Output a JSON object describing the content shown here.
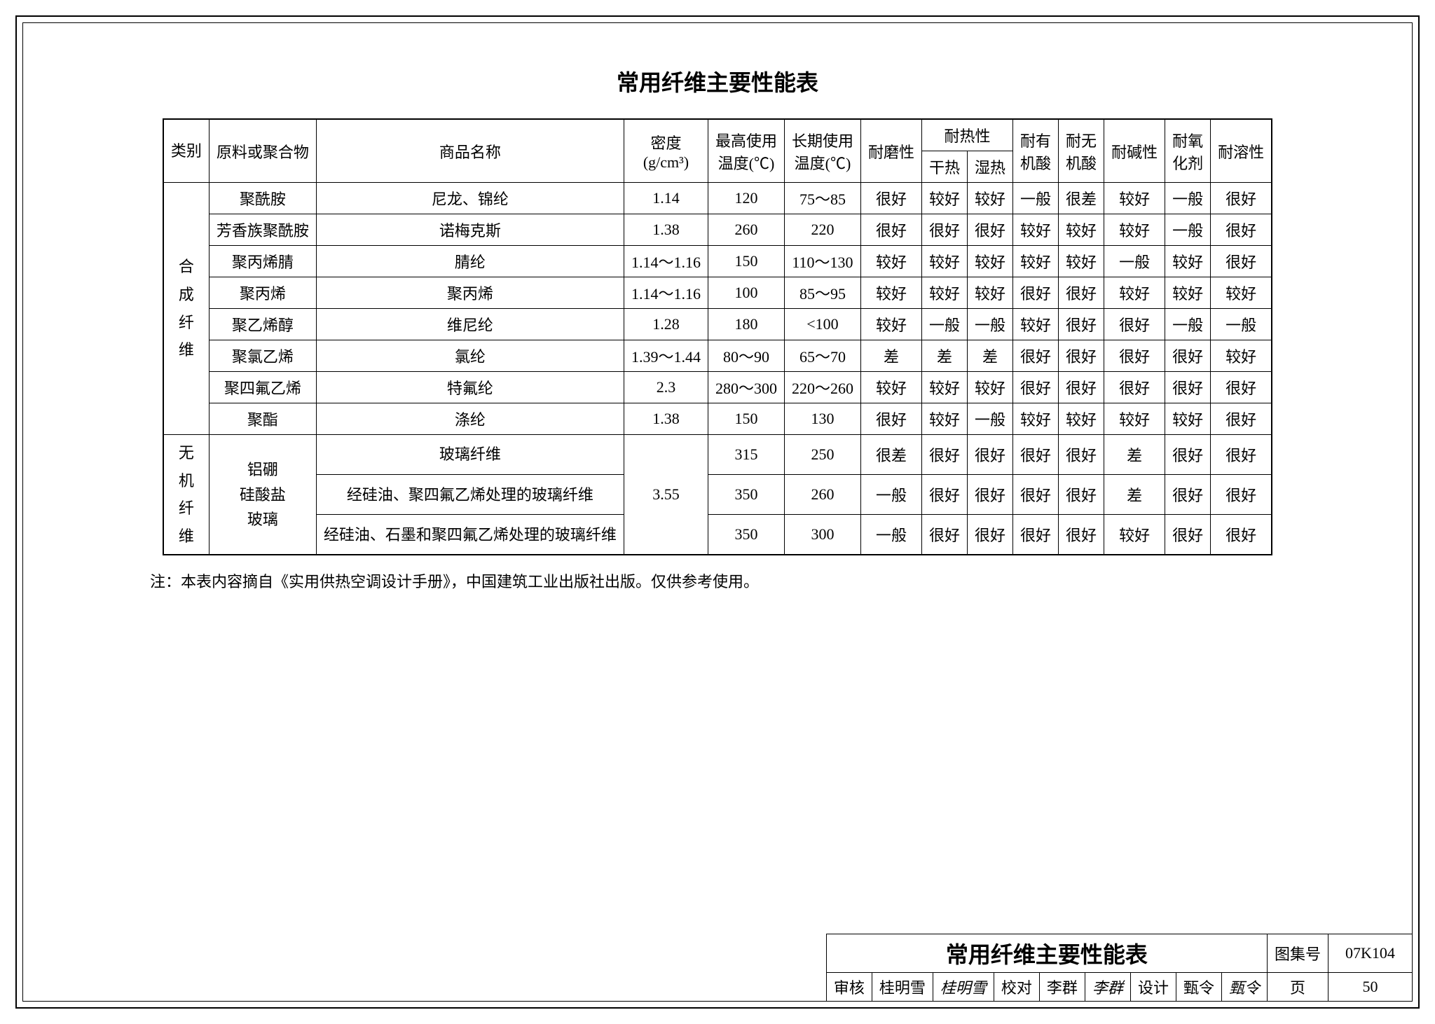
{
  "title": "常用纤维主要性能表",
  "columns": {
    "category": "类别",
    "material": "原料或聚合物",
    "name": "商品名称",
    "density": "密度",
    "density_unit": "(g/cm³)",
    "max_temp": "最高使用温度(℃)",
    "long_temp": "长期使用温度(℃)",
    "abrasion": "耐磨性",
    "heat": "耐热性",
    "heat_dry": "干热",
    "heat_wet": "湿热",
    "org_acid": "耐有机酸",
    "inorg_acid": "耐无机酸",
    "alkali": "耐碱性",
    "oxidizer": "耐氧化剂",
    "solvent": "耐溶性"
  },
  "cat1": "合成纤维",
  "cat2": "无机纤维",
  "cat2_material": "铝硼\n硅酸盐\n玻璃",
  "rows_synthetic": [
    {
      "material": "聚酰胺",
      "name": "尼龙、锦纶",
      "density": "1.14",
      "max": "120",
      "long": "75～85",
      "abr": "很好",
      "hd": "较好",
      "hw": "较好",
      "oa": "一般",
      "ia": "很差",
      "alk": "较好",
      "ox": "一般",
      "sol": "很好"
    },
    {
      "material": "芳香族聚酰胺",
      "name": "诺梅克斯",
      "density": "1.38",
      "max": "260",
      "long": "220",
      "abr": "很好",
      "hd": "很好",
      "hw": "很好",
      "oa": "较好",
      "ia": "较好",
      "alk": "较好",
      "ox": "一般",
      "sol": "很好"
    },
    {
      "material": "聚丙烯腈",
      "name": "腈纶",
      "density": "1.14～1.16",
      "max": "150",
      "long": "110～130",
      "abr": "较好",
      "hd": "较好",
      "hw": "较好",
      "oa": "较好",
      "ia": "较好",
      "alk": "一般",
      "ox": "较好",
      "sol": "很好"
    },
    {
      "material": "聚丙烯",
      "name": "聚丙烯",
      "density": "1.14～1.16",
      "max": "100",
      "long": "85～95",
      "abr": "较好",
      "hd": "较好",
      "hw": "较好",
      "oa": "很好",
      "ia": "很好",
      "alk": "较好",
      "ox": "较好",
      "sol": "较好"
    },
    {
      "material": "聚乙烯醇",
      "name": "维尼纶",
      "density": "1.28",
      "max": "180",
      "long": "<100",
      "abr": "较好",
      "hd": "一般",
      "hw": "一般",
      "oa": "较好",
      "ia": "很好",
      "alk": "很好",
      "ox": "一般",
      "sol": "一般"
    },
    {
      "material": "聚氯乙烯",
      "name": "氯纶",
      "density": "1.39～1.44",
      "max": "80～90",
      "long": "65～70",
      "abr": "差",
      "hd": "差",
      "hw": "差",
      "oa": "很好",
      "ia": "很好",
      "alk": "很好",
      "ox": "很好",
      "sol": "较好"
    },
    {
      "material": "聚四氟乙烯",
      "name": "特氟纶",
      "density": "2.3",
      "max": "280～300",
      "long": "220～260",
      "abr": "较好",
      "hd": "较好",
      "hw": "较好",
      "oa": "很好",
      "ia": "很好",
      "alk": "很好",
      "ox": "很好",
      "sol": "很好"
    },
    {
      "material": "聚酯",
      "name": "涤纶",
      "density": "1.38",
      "max": "150",
      "long": "130",
      "abr": "很好",
      "hd": "较好",
      "hw": "一般",
      "oa": "较好",
      "ia": "较好",
      "alk": "较好",
      "ox": "较好",
      "sol": "很好"
    }
  ],
  "rows_inorganic": [
    {
      "name": "玻璃纤维",
      "max": "315",
      "long": "250",
      "abr": "很差",
      "hd": "很好",
      "hw": "很好",
      "oa": "很好",
      "ia": "很好",
      "alk": "差",
      "ox": "很好",
      "sol": "很好"
    },
    {
      "name": "经硅油、聚四氟乙烯处理的玻璃纤维",
      "max": "350",
      "long": "260",
      "abr": "一般",
      "hd": "很好",
      "hw": "很好",
      "oa": "很好",
      "ia": "很好",
      "alk": "差",
      "ox": "很好",
      "sol": "很好"
    },
    {
      "name": "经硅油、石墨和聚四氟乙烯处理的玻璃纤维",
      "max": "350",
      "long": "300",
      "abr": "一般",
      "hd": "很好",
      "hw": "很好",
      "oa": "很好",
      "ia": "很好",
      "alk": "较好",
      "ox": "很好",
      "sol": "很好"
    }
  ],
  "inorg_density": "3.55",
  "note": "注：本表内容摘自《实用供热空调设计手册》，中国建筑工业出版社出版。仅供参考使用。",
  "footer": {
    "title": "常用纤维主要性能表",
    "tuji_label": "图集号",
    "tuji_value": "07K104",
    "shenhe_label": "审核",
    "shenhe_name": "桂明雪",
    "shenhe_sig": "桂明雪",
    "jiaodui_label": "校对",
    "jiaodui_name": "李群",
    "jiaodui_sig": "李群",
    "sheji_label": "设计",
    "sheji_name": "甄令",
    "sheji_sig": "甄令",
    "page_label": "页",
    "page_value": "50"
  }
}
